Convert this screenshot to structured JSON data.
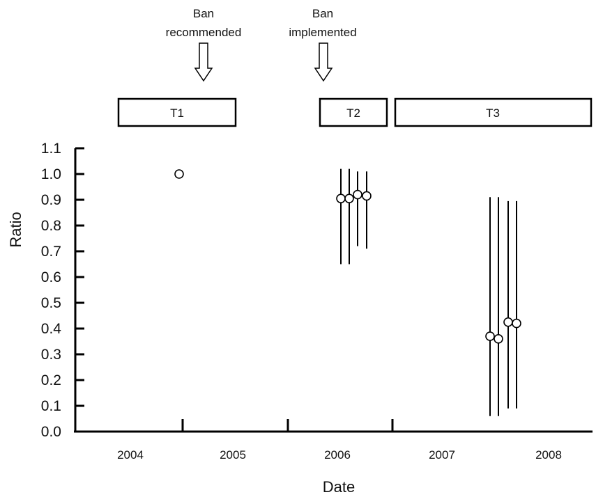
{
  "chart_data": {
    "type": "scatter",
    "title": "",
    "xlabel": "Date",
    "ylabel": "Ratio",
    "ylim": [
      0.0,
      1.1
    ],
    "y_ticks": [
      "0.0",
      "0.1",
      "0.2",
      "0.3",
      "0.4",
      "0.5",
      "0.6",
      "0.7",
      "0.8",
      "0.9",
      "1.0",
      "1.1"
    ],
    "x_categories": [
      "2004",
      "2005",
      "2006",
      "2007",
      "2008"
    ],
    "grid": false,
    "points": [
      {
        "x": "late 2004",
        "y": 1.0,
        "low": null,
        "high": null
      },
      {
        "x": "early 2006",
        "y": 0.905,
        "low": 0.65,
        "high": 1.02
      },
      {
        "x": "early 2006",
        "y": 0.905,
        "low": 0.65,
        "high": 1.02
      },
      {
        "x": "early 2006",
        "y": 0.92,
        "low": 0.72,
        "high": 1.01
      },
      {
        "x": "early 2006",
        "y": 0.915,
        "low": 0.71,
        "high": 1.01
      },
      {
        "x": "late 2007",
        "y": 0.37,
        "low": 0.06,
        "high": 0.91
      },
      {
        "x": "late 2007",
        "y": 0.36,
        "low": 0.06,
        "high": 0.91
      },
      {
        "x": "late 2007",
        "y": 0.425,
        "low": 0.09,
        "high": 0.895
      },
      {
        "x": "late 2007",
        "y": 0.42,
        "low": 0.09,
        "high": 0.895
      }
    ],
    "periods": [
      {
        "label": "T1"
      },
      {
        "label": "T2"
      },
      {
        "label": "T3"
      }
    ],
    "annotations": [
      {
        "line1": "Ban",
        "line2": "recommended"
      },
      {
        "line1": "Ban",
        "line2": "implemented"
      }
    ]
  }
}
